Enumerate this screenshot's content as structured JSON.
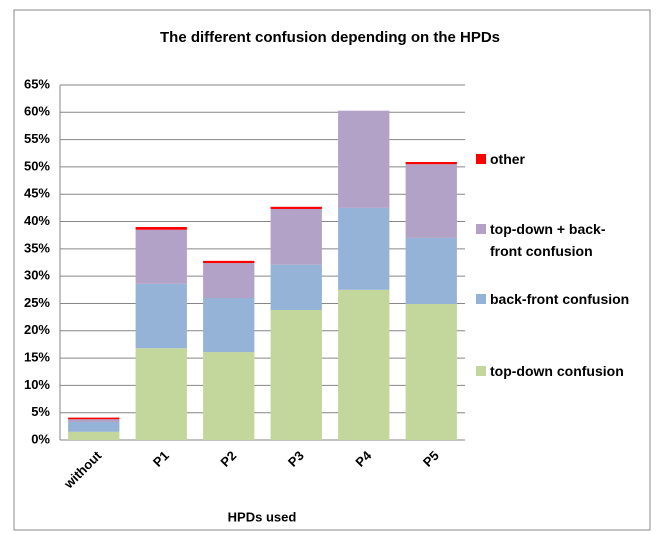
{
  "chart_data": {
    "type": "stacked_bar",
    "title": "The different confusion  depending on the HPDs",
    "x_label": "HPDs used",
    "categories": [
      "without",
      "P1",
      "P2",
      "P3",
      "P4",
      "P5"
    ],
    "series": [
      {
        "name": "top-down confusion",
        "color": "#c3d69b",
        "values": [
          1.5,
          16.8,
          16.1,
          23.8,
          27.5,
          24.9
        ]
      },
      {
        "name": "back-front confusion",
        "color": "#95b3d7",
        "values": [
          1.8,
          11.8,
          9.9,
          8.3,
          15.0,
          12.1
        ]
      },
      {
        "name": "top-down + back-front confusion",
        "color": "#b3a2c7",
        "values": [
          0.5,
          9.9,
          6.4,
          10.2,
          17.8,
          13.5
        ]
      },
      {
        "name": "other",
        "color": "#ff0000",
        "values": [
          0.3,
          0.5,
          0.4,
          0.4,
          0,
          0.4
        ]
      }
    ],
    "ylim": [
      0,
      65
    ],
    "yticks": [
      {
        "value": 0,
        "label": "0%"
      },
      {
        "value": 5,
        "label": "5%"
      },
      {
        "value": 10,
        "label": "10%"
      },
      {
        "value": 15,
        "label": "15%"
      },
      {
        "value": 20,
        "label": "20%"
      },
      {
        "value": 25,
        "label": "25%"
      },
      {
        "value": 30,
        "label": "30%"
      },
      {
        "value": 35,
        "label": "35%"
      },
      {
        "value": 40,
        "label": "40%"
      },
      {
        "value": 45,
        "label": "45%"
      },
      {
        "value": 50,
        "label": "50%"
      },
      {
        "value": 55,
        "label": "55%"
      },
      {
        "value": 60,
        "label": "60%"
      },
      {
        "value": 65,
        "label": "65%"
      }
    ],
    "grid": true
  }
}
